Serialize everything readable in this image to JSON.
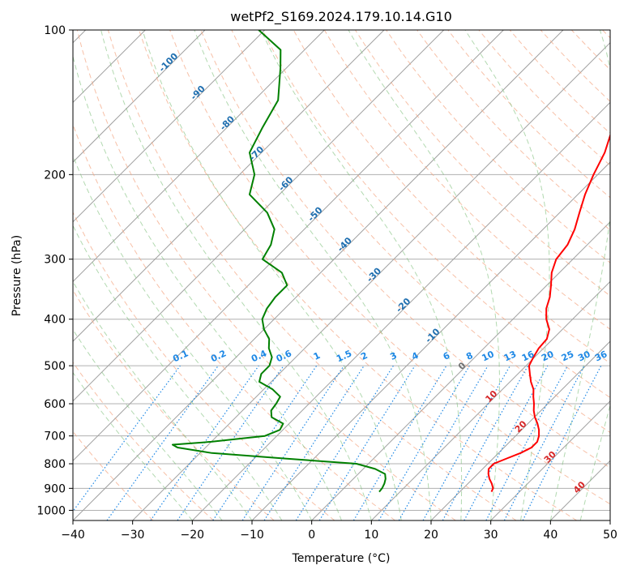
{
  "chart_data": {
    "type": "line",
    "title": "wetPf2_S169.2024.179.10.14.G10",
    "xlabel": "Temperature (°C)",
    "ylabel": "Pressure (hPa)",
    "xlim": [
      -40,
      50
    ],
    "ylim": [
      1050,
      100
    ],
    "y_log_scale": true,
    "skew": true,
    "x_ticks": [
      -40,
      -30,
      -20,
      -10,
      0,
      10,
      20,
      30,
      40,
      50
    ],
    "y_ticks": [
      100,
      200,
      300,
      400,
      500,
      600,
      700,
      800,
      900,
      1000
    ],
    "grid": true,
    "series": [
      {
        "color": "#ff0000",
        "pressure": [
          915,
          900,
          880,
          860,
          840,
          820,
          800,
          780,
          760,
          740,
          720,
          700,
          680,
          660,
          640,
          620,
          600,
          580,
          560,
          540,
          520,
          500,
          480,
          460,
          440,
          420,
          400,
          380,
          360,
          340,
          320,
          300,
          280,
          260,
          240,
          220,
          200,
          180,
          160,
          140,
          120,
          110,
          100
        ],
        "temperature": [
          25.3,
          25.0,
          24.0,
          22.8,
          21.8,
          21.0,
          21.0,
          22.3,
          23.7,
          24.6,
          24.6,
          23.9,
          22.9,
          21.6,
          20.1,
          18.8,
          17.7,
          16.4,
          15.2,
          13.5,
          12.0,
          10.5,
          9.8,
          9.2,
          9.0,
          7.8,
          5.6,
          3.8,
          2.5,
          0.7,
          -1.3,
          -2.8,
          -3.3,
          -4.7,
          -6.7,
          -8.8,
          -10.7,
          -12.5,
          -15.3,
          -18.5,
          -22.8,
          -23.2,
          -25.0
        ]
      },
      {
        "color": "#008000",
        "pressure": [
          915,
          900,
          880,
          860,
          840,
          820,
          800,
          780,
          760,
          740,
          730,
          720,
          700,
          680,
          660,
          640,
          620,
          600,
          580,
          560,
          540,
          520,
          500,
          480,
          460,
          440,
          420,
          400,
          380,
          360,
          340,
          320,
          300,
          280,
          260,
          240,
          220,
          200,
          180,
          160,
          140,
          120,
          110,
          100
        ],
        "temperature": [
          6.5,
          6.4,
          6.0,
          5.4,
          4.5,
          2.0,
          -2.0,
          -15.0,
          -28.0,
          -34.7,
          -36.0,
          -30.0,
          -22.0,
          -20.5,
          -21.0,
          -24.0,
          -25.2,
          -25.5,
          -26.0,
          -28.5,
          -32.0,
          -33.0,
          -33.0,
          -34.0,
          -36.0,
          -37.5,
          -40.0,
          -42.0,
          -43.0,
          -43.5,
          -43.5,
          -46.5,
          -52.0,
          -53.0,
          -55.0,
          -59.0,
          -65.0,
          -67.5,
          -72.0,
          -74.0,
          -76.0,
          -81.0,
          -84.0,
          -91.0
        ]
      }
    ],
    "dry_adiabat_labels": [
      "-100",
      "-90",
      "-80",
      "-70",
      "-60",
      "-50",
      "-40",
      "-30",
      "-20",
      "-10",
      "0",
      "10",
      "20",
      "30",
      "40"
    ],
    "mixing_ratio_labels": [
      "0.1",
      "0.2",
      "0.4",
      "0.6",
      "1",
      "1.5",
      "2",
      "3",
      "4",
      "6",
      "8",
      "10",
      "13",
      "16",
      "20",
      "25",
      "30",
      "36"
    ],
    "colors": {
      "temperature": "#ff0000",
      "dewpoint": "#008000",
      "isotherm": "#a0a0a0",
      "dry_adiabat": "#f4a582",
      "moist_adiabat": "#7fbf7b",
      "mixing_ratio": "#1e88e5",
      "dry_adiabat_label_cold": "#1f6fb0",
      "dry_adiabat_label_warm": "#d62728"
    }
  }
}
